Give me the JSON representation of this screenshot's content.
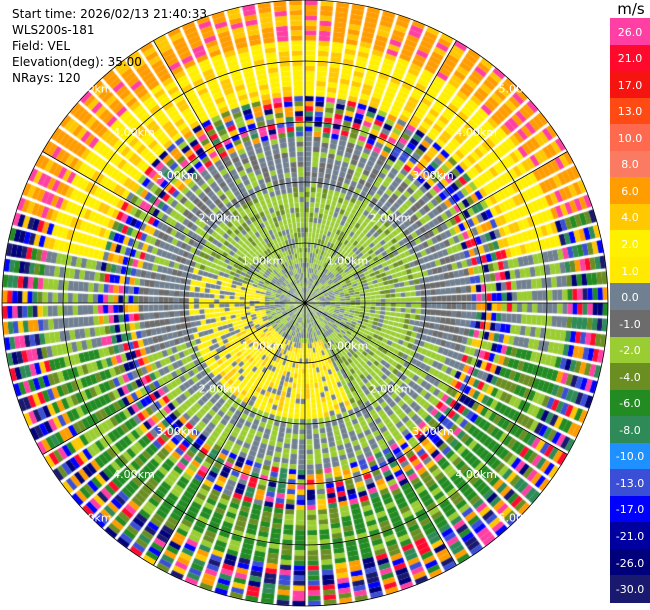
{
  "header": {
    "start_time": "Start time: 2026/02/13 21:40:33",
    "instrument": "WLS200s-181",
    "field": "Field: VEL",
    "elevation": "Elevation(deg): 35.00",
    "nrays": "NRays: 120"
  },
  "colorbar": {
    "unit": "m/s",
    "levels": [
      {
        "label": "26.0",
        "color": "#ff3fa3"
      },
      {
        "label": "21.0",
        "color": "#ff0a2c"
      },
      {
        "label": "17.0",
        "color": "#f5140f"
      },
      {
        "label": "13.0",
        "color": "#ff4a14"
      },
      {
        "label": "10.0",
        "color": "#ff6a4f"
      },
      {
        "label": "8.0",
        "color": "#fb7b62"
      },
      {
        "label": "6.0",
        "color": "#ff9c00"
      },
      {
        "label": "4.0",
        "color": "#ffc800"
      },
      {
        "label": "2.0",
        "color": "#fff000"
      },
      {
        "label": "1.0",
        "color": "#ffe900"
      },
      {
        "label": "0.0",
        "color": "#708090"
      },
      {
        "label": "-1.0",
        "color": "#6c6c6c"
      },
      {
        "label": "-2.0",
        "color": "#9acd32"
      },
      {
        "label": "-4.0",
        "color": "#6b8e23"
      },
      {
        "label": "-6.0",
        "color": "#228b22"
      },
      {
        "label": "-8.0",
        "color": "#2e8b57"
      },
      {
        "label": "-10.0",
        "color": "#1e90ff"
      },
      {
        "label": "-13.0",
        "color": "#3a4fd6"
      },
      {
        "label": "-17.0",
        "color": "#0000ff"
      },
      {
        "label": "-21.0",
        "color": "#0000a0"
      },
      {
        "label": "-26.0",
        "color": "#00007a"
      },
      {
        "label": "-30.0",
        "color": "#191970"
      }
    ]
  },
  "range_rings": {
    "labels": [
      "1.00km",
      "2.00km",
      "3.00km",
      "4.00km",
      "5.00km"
    ]
  }
}
